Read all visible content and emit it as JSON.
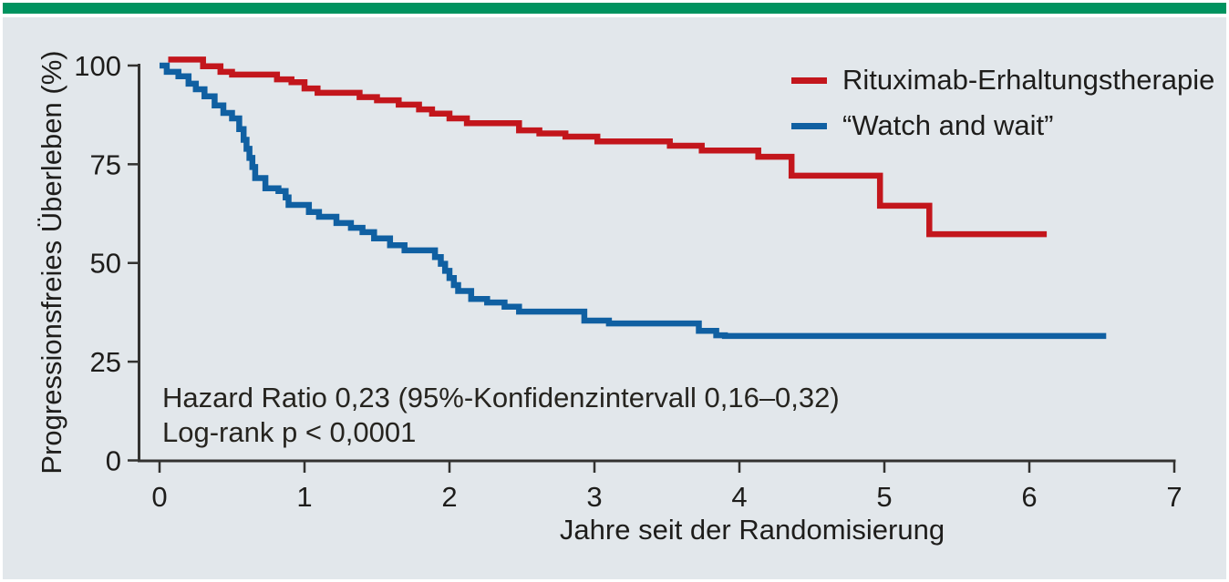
{
  "figure": {
    "top_bar_color": "#00935F",
    "panel_bg": "#E2E7EB",
    "axis_color": "#333230",
    "text_color": "#1e1d1b"
  },
  "chart_data": {
    "type": "line",
    "subtype": "kaplan-meier-step",
    "title": "",
    "xlabel": "Jahre seit der Randomisierung",
    "ylabel": "Progressionsfreies Überleben (%)",
    "xlim": [
      0,
      7
    ],
    "ylim": [
      0,
      100
    ],
    "x_ticks": [
      0,
      1,
      2,
      3,
      4,
      5,
      6,
      7
    ],
    "y_ticks": [
      0,
      25,
      50,
      75,
      100
    ],
    "grid": false,
    "legend_position": "top-right",
    "annotation": {
      "line1": "Hazard Ratio 0,23 (95%-Konfidenzintervall 0,16–0,32)",
      "line2": "Log-rank p < 0,0001"
    },
    "series": [
      {
        "name": "Rituximab-Erhaltungstherapie",
        "color": "#C3161C",
        "points": [
          [
            0.06,
            101.5
          ],
          [
            0.3,
            99.8
          ],
          [
            0.42,
            98.4
          ],
          [
            0.5,
            97.7
          ],
          [
            0.81,
            96.5
          ],
          [
            0.91,
            95.8
          ],
          [
            1.0,
            94.2
          ],
          [
            1.09,
            93.1
          ],
          [
            1.38,
            92.0
          ],
          [
            1.5,
            91.2
          ],
          [
            1.65,
            90.1
          ],
          [
            1.79,
            88.9
          ],
          [
            1.88,
            87.8
          ],
          [
            2.0,
            86.6
          ],
          [
            2.12,
            85.4
          ],
          [
            2.48,
            83.6
          ],
          [
            2.62,
            82.8
          ],
          [
            2.8,
            82.0
          ],
          [
            3.02,
            80.8
          ],
          [
            3.52,
            79.7
          ],
          [
            3.74,
            78.5
          ],
          [
            4.13,
            76.9
          ],
          [
            4.36,
            72.1
          ],
          [
            4.97,
            64.5
          ],
          [
            5.31,
            57.3
          ],
          [
            6.12,
            57.3
          ]
        ]
      },
      {
        "name": "“Watch and wait”",
        "color": "#1060A2",
        "points": [
          [
            0.0,
            100.0
          ],
          [
            0.05,
            98.4
          ],
          [
            0.13,
            97.3
          ],
          [
            0.2,
            95.4
          ],
          [
            0.25,
            94.0
          ],
          [
            0.31,
            92.2
          ],
          [
            0.38,
            89.9
          ],
          [
            0.44,
            88.0
          ],
          [
            0.5,
            86.6
          ],
          [
            0.55,
            83.9
          ],
          [
            0.58,
            81.2
          ],
          [
            0.6,
            78.9
          ],
          [
            0.62,
            76.6
          ],
          [
            0.64,
            74.3
          ],
          [
            0.66,
            71.5
          ],
          [
            0.73,
            68.9
          ],
          [
            0.82,
            68.2
          ],
          [
            0.87,
            66.6
          ],
          [
            0.89,
            64.7
          ],
          [
            1.03,
            62.9
          ],
          [
            1.1,
            61.7
          ],
          [
            1.22,
            60.1
          ],
          [
            1.32,
            58.9
          ],
          [
            1.4,
            57.8
          ],
          [
            1.48,
            56.2
          ],
          [
            1.59,
            54.5
          ],
          [
            1.69,
            53.2
          ],
          [
            1.9,
            51.5
          ],
          [
            1.94,
            49.8
          ],
          [
            1.97,
            48.0
          ],
          [
            2.0,
            46.2
          ],
          [
            2.03,
            44.4
          ],
          [
            2.06,
            42.9
          ],
          [
            2.15,
            40.9
          ],
          [
            2.26,
            40.0
          ],
          [
            2.38,
            38.9
          ],
          [
            2.48,
            37.7
          ],
          [
            2.93,
            35.4
          ],
          [
            3.1,
            34.7
          ],
          [
            3.72,
            32.8
          ],
          [
            3.84,
            31.7
          ],
          [
            3.9,
            31.5
          ],
          [
            6.53,
            31.5
          ]
        ]
      }
    ]
  }
}
